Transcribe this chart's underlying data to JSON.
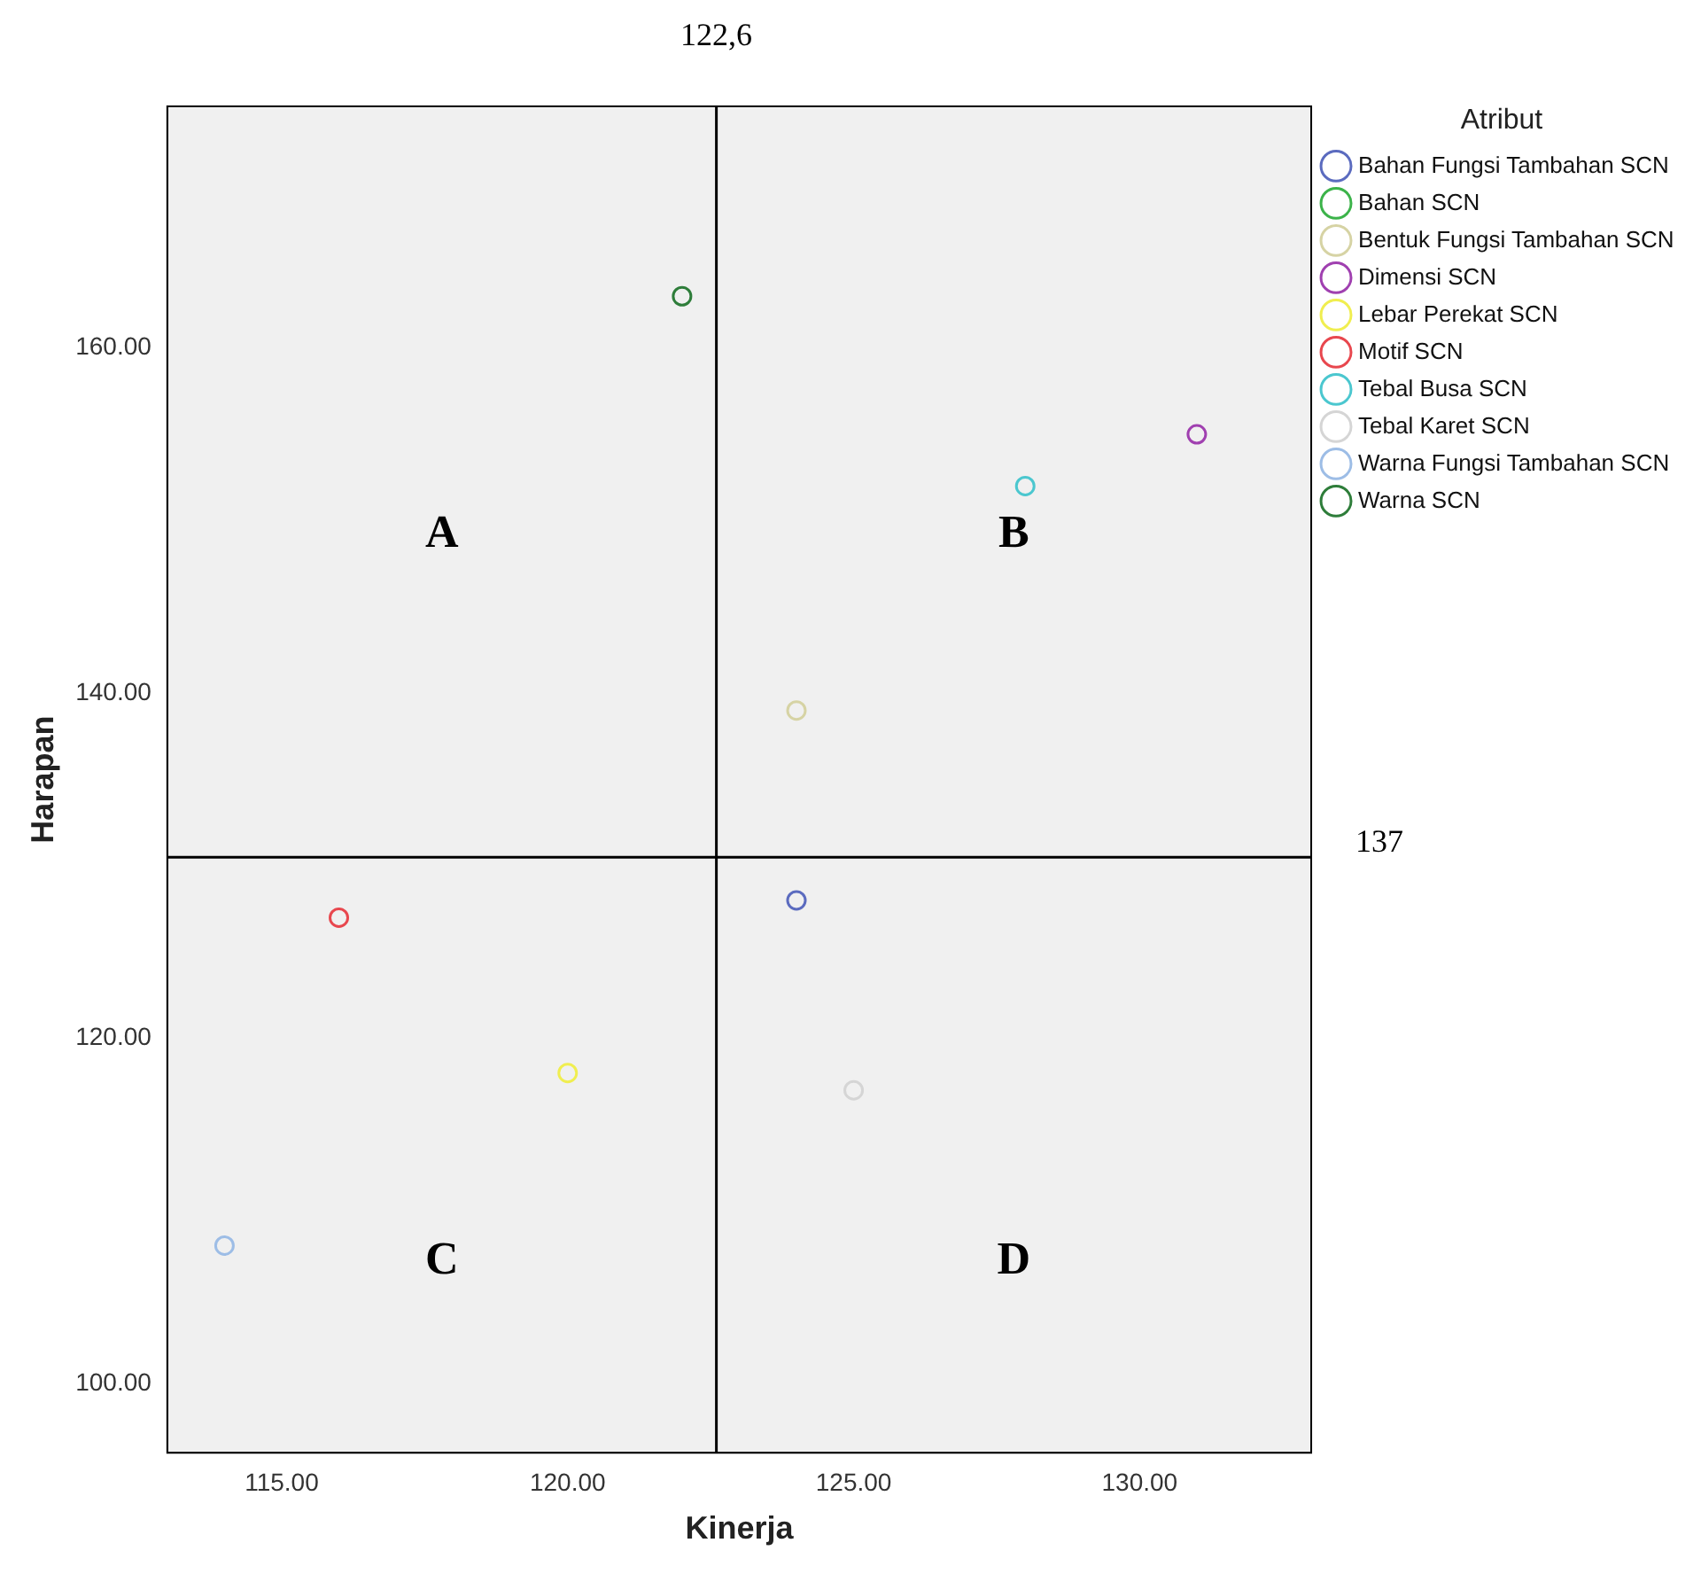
{
  "chart_data": {
    "type": "scatter",
    "xlabel": "Kinerja",
    "ylabel": "Harapan",
    "legend_title": "Atribut",
    "legend": "top right",
    "marker": "circle",
    "grid": false,
    "xlim": [
      113,
      133
    ],
    "xticks": [
      {
        "value": 115,
        "label": "115.00"
      },
      {
        "value": 120,
        "label": "120.00"
      },
      {
        "value": 125,
        "label": "125.00"
      },
      {
        "value": 130,
        "label": "130.00"
      }
    ],
    "ylim": [
      96,
      174
    ],
    "yticks": [
      {
        "value": 100,
        "label": "100.00"
      },
      {
        "value": 120,
        "label": "120.00"
      },
      {
        "value": 140,
        "label": "140.00"
      },
      {
        "value": 160,
        "label": "160.00"
      }
    ],
    "series": [
      {
        "name": "Bahan Fungsi Tambahan SCN",
        "color": "#5b6bbf",
        "x": [
          124
        ],
        "values": [
          128
        ]
      },
      {
        "name": "Bahan SCN",
        "color": "#3cb34a",
        "x": [
          null
        ],
        "values": [
          null
        ]
      },
      {
        "name": "Bentuk Fungsi Tambahan SCN",
        "color": "#d6d3a4",
        "x": [
          124
        ],
        "values": [
          139
        ]
      },
      {
        "name": "Dimensi SCN",
        "color": "#a040b0",
        "x": [
          131
        ],
        "values": [
          155
        ]
      },
      {
        "name": "Lebar Perekat SCN",
        "color": "#f0ee50",
        "x": [
          120
        ],
        "values": [
          118
        ]
      },
      {
        "name": "Motif SCN",
        "color": "#e8474e",
        "x": [
          116
        ],
        "values": [
          127
        ]
      },
      {
        "name": "Tebal Busa SCN",
        "color": "#4bc7cf",
        "x": [
          128
        ],
        "values": [
          152
        ]
      },
      {
        "name": "Tebal Karet SCN",
        "color": "#d5d5d5",
        "x": [
          125
        ],
        "values": [
          117
        ]
      },
      {
        "name": "Warna Fungsi Tambahan SCN",
        "color": "#9dbde6",
        "x": [
          114
        ],
        "values": [
          108
        ]
      },
      {
        "name": "Warna SCN",
        "color": "#2e7d3a",
        "x": [
          122
        ],
        "values": [
          163
        ]
      }
    ],
    "ref_lines": [
      {
        "axis": "x",
        "value": 122.6,
        "label": "122,6",
        "color": "#000000"
      },
      {
        "axis": "y",
        "value": 130.5,
        "color": "#000000"
      }
    ],
    "annotations": [
      "A",
      "B",
      "C",
      "D",
      "137"
    ]
  }
}
